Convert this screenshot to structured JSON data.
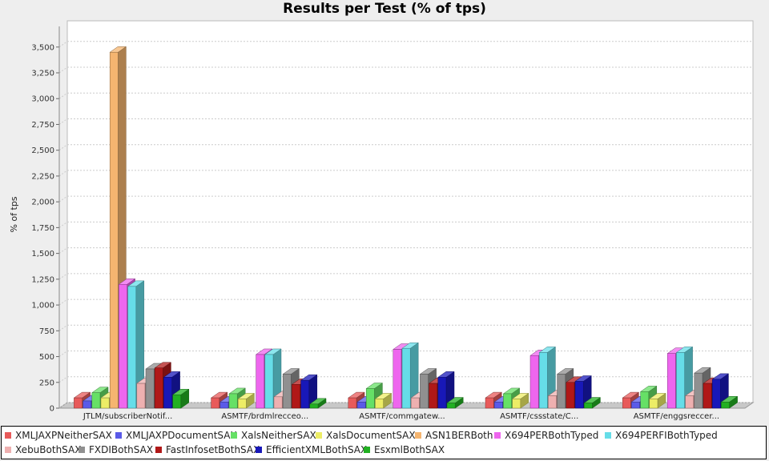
{
  "chart_data": {
    "type": "bar",
    "title": "Results per Test (% of tps)",
    "ylabel": "% of tps",
    "xlabel": "",
    "ylim": [
      0,
      3700
    ],
    "yticks": [
      0,
      250,
      500,
      750,
      1000,
      1250,
      1500,
      1750,
      2000,
      2250,
      2500,
      2750,
      3000,
      3250,
      3500
    ],
    "ytick_labels": [
      "0",
      "250",
      "500",
      "750",
      "1,000",
      "1,250",
      "1,500",
      "1,750",
      "2,000",
      "2,250",
      "2,500",
      "2,750",
      "3,000",
      "3,250",
      "3,500"
    ],
    "grid": true,
    "legend_position": "bottom",
    "categories": [
      "JTLM/subscriberNotif...",
      "ASMTF/brdmlrecceo...",
      "ASMTF/commgatew...",
      "ASMTF/cssstate/C...",
      "ASMTF/enggsreccer..."
    ],
    "series": [
      {
        "name": "XMLJAXPNeitherSAX",
        "color": "#e85a5a",
        "values": [
          100,
          100,
          100,
          100,
          100
        ]
      },
      {
        "name": "XMLJAXPDocumentSAX",
        "color": "#5a5ae8",
        "values": [
          70,
          60,
          60,
          60,
          60
        ]
      },
      {
        "name": "XalsNeitherSAX",
        "color": "#66e066",
        "values": [
          150,
          140,
          190,
          140,
          160
        ]
      },
      {
        "name": "XalsDocumentSAX",
        "color": "#eded66",
        "values": [
          100,
          90,
          90,
          90,
          90
        ]
      },
      {
        "name": "ASN1BERBoth",
        "color": "#f5b570",
        "values": [
          3450,
          0,
          0,
          0,
          0
        ]
      },
      {
        "name": "X694PERBothTyped",
        "color": "#ee66ee",
        "values": [
          1200,
          520,
          570,
          510,
          530
        ]
      },
      {
        "name": "X694PERFIBothTyped",
        "color": "#66dde8",
        "values": [
          1180,
          520,
          580,
          540,
          540
        ]
      },
      {
        "name": "XebuBothSAX",
        "color": "#eeb0b0",
        "values": [
          240,
          110,
          100,
          120,
          120
        ]
      },
      {
        "name": "FXDIBothSAX",
        "color": "#909090",
        "values": [
          380,
          330,
          330,
          330,
          340
        ]
      },
      {
        "name": "FastInfosetBothSAX",
        "color": "#b01818",
        "values": [
          390,
          230,
          240,
          250,
          240
        ]
      },
      {
        "name": "EfficientXMLBothSAX",
        "color": "#1818b8",
        "values": [
          300,
          270,
          300,
          260,
          280
        ]
      },
      {
        "name": "EsxmlBothSAX",
        "color": "#22b022",
        "values": [
          130,
          40,
          50,
          50,
          60
        ]
      }
    ]
  }
}
